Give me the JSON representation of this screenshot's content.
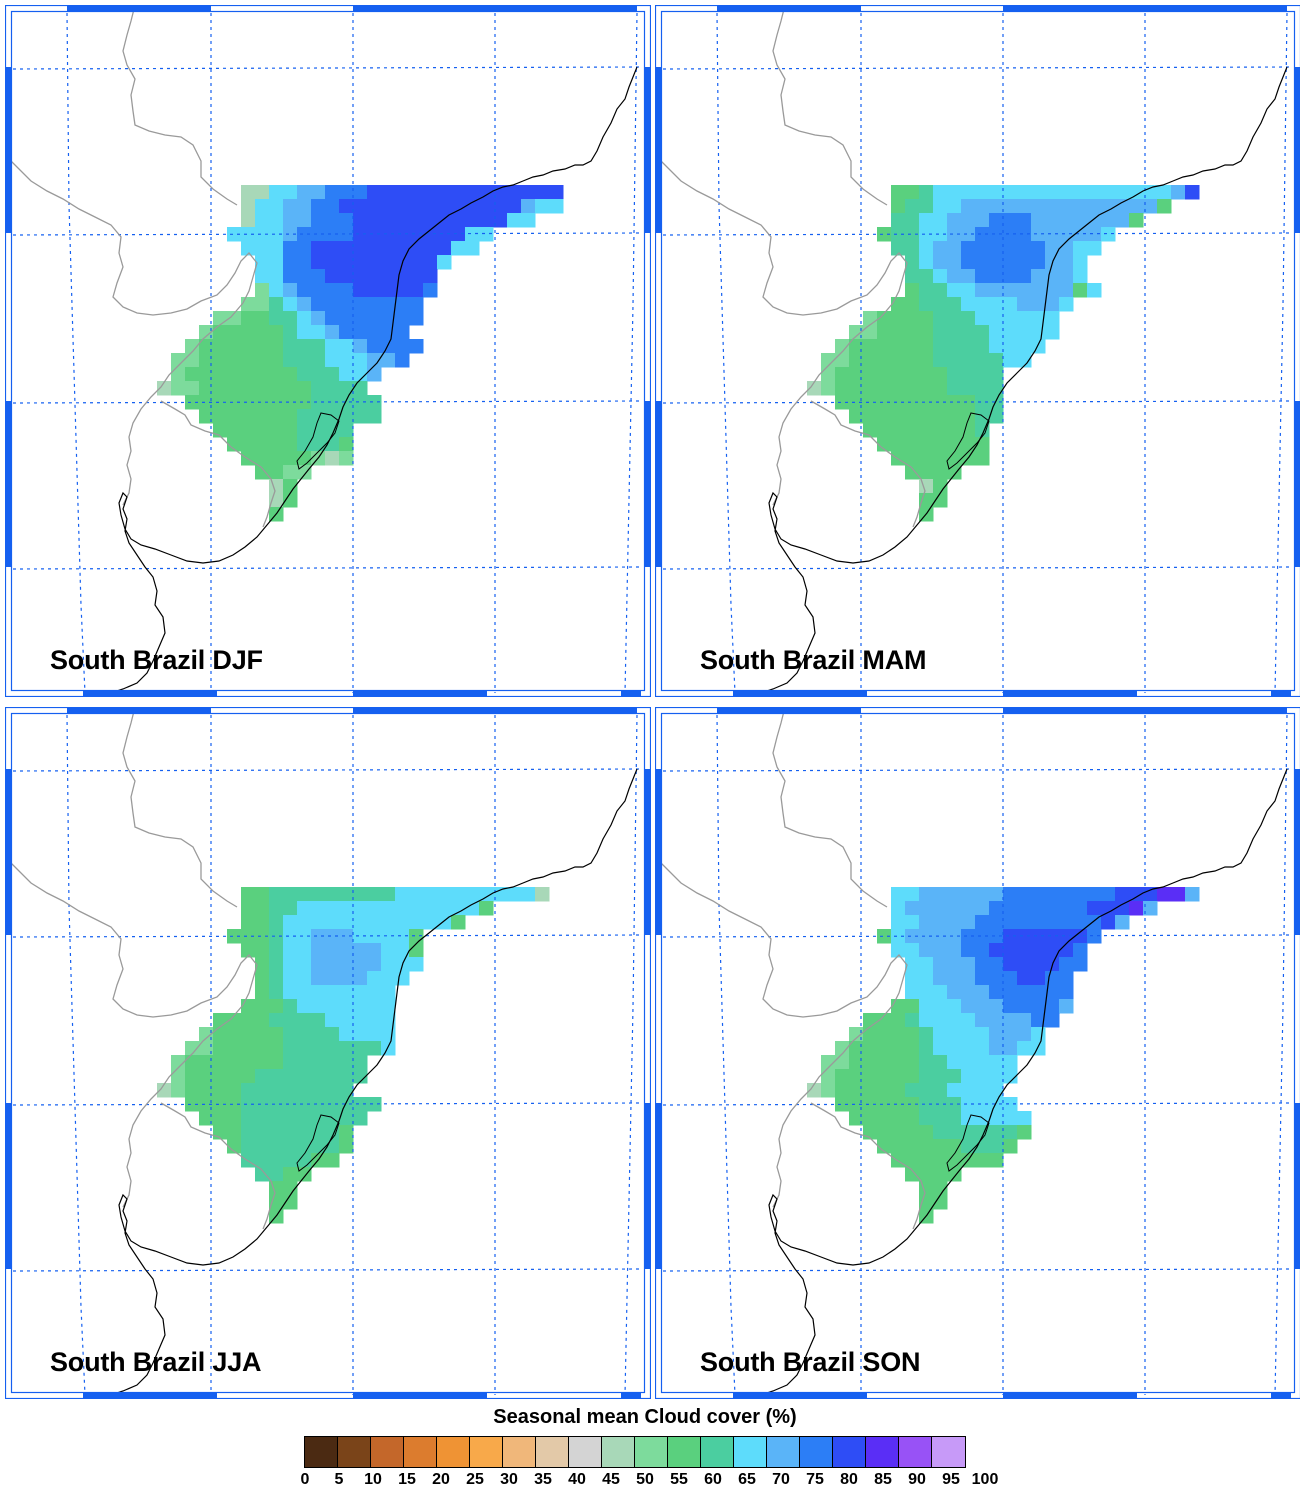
{
  "panels": [
    {
      "title": "South Brazil DJF",
      "season": "DJF"
    },
    {
      "title": "South Brazil MAM",
      "season": "MAM"
    },
    {
      "title": "South Brazil JJA",
      "season": "JJA"
    },
    {
      "title": "South Brazil SON",
      "season": "SON"
    }
  ],
  "legend": {
    "title": "Seasonal mean Cloud cover (%)",
    "colors": [
      "#4b2a12",
      "#7a4419",
      "#c4672a",
      "#dc7c2e",
      "#ef9334",
      "#f8a94a",
      "#f0b77a",
      "#e3c9a8",
      "#d4d4d4",
      "#a8d8b8",
      "#7ddb9c",
      "#5ad07e",
      "#4bcea0",
      "#5ddcfb",
      "#5ab4f8",
      "#2c7ef6",
      "#2e4df6",
      "#5a2ef6",
      "#9852f6",
      "#c79af8"
    ],
    "ticks": [
      "0",
      "5",
      "10",
      "15",
      "20",
      "25",
      "30",
      "35",
      "40",
      "45",
      "50",
      "55",
      "60",
      "65",
      "70",
      "75",
      "80",
      "85",
      "90",
      "95",
      "100"
    ]
  },
  "map": {
    "gridline_color": "#1560f0",
    "frame_color": "#1560f0",
    "coast_color": "#000000",
    "border_color": "#9a9a9a"
  }
}
